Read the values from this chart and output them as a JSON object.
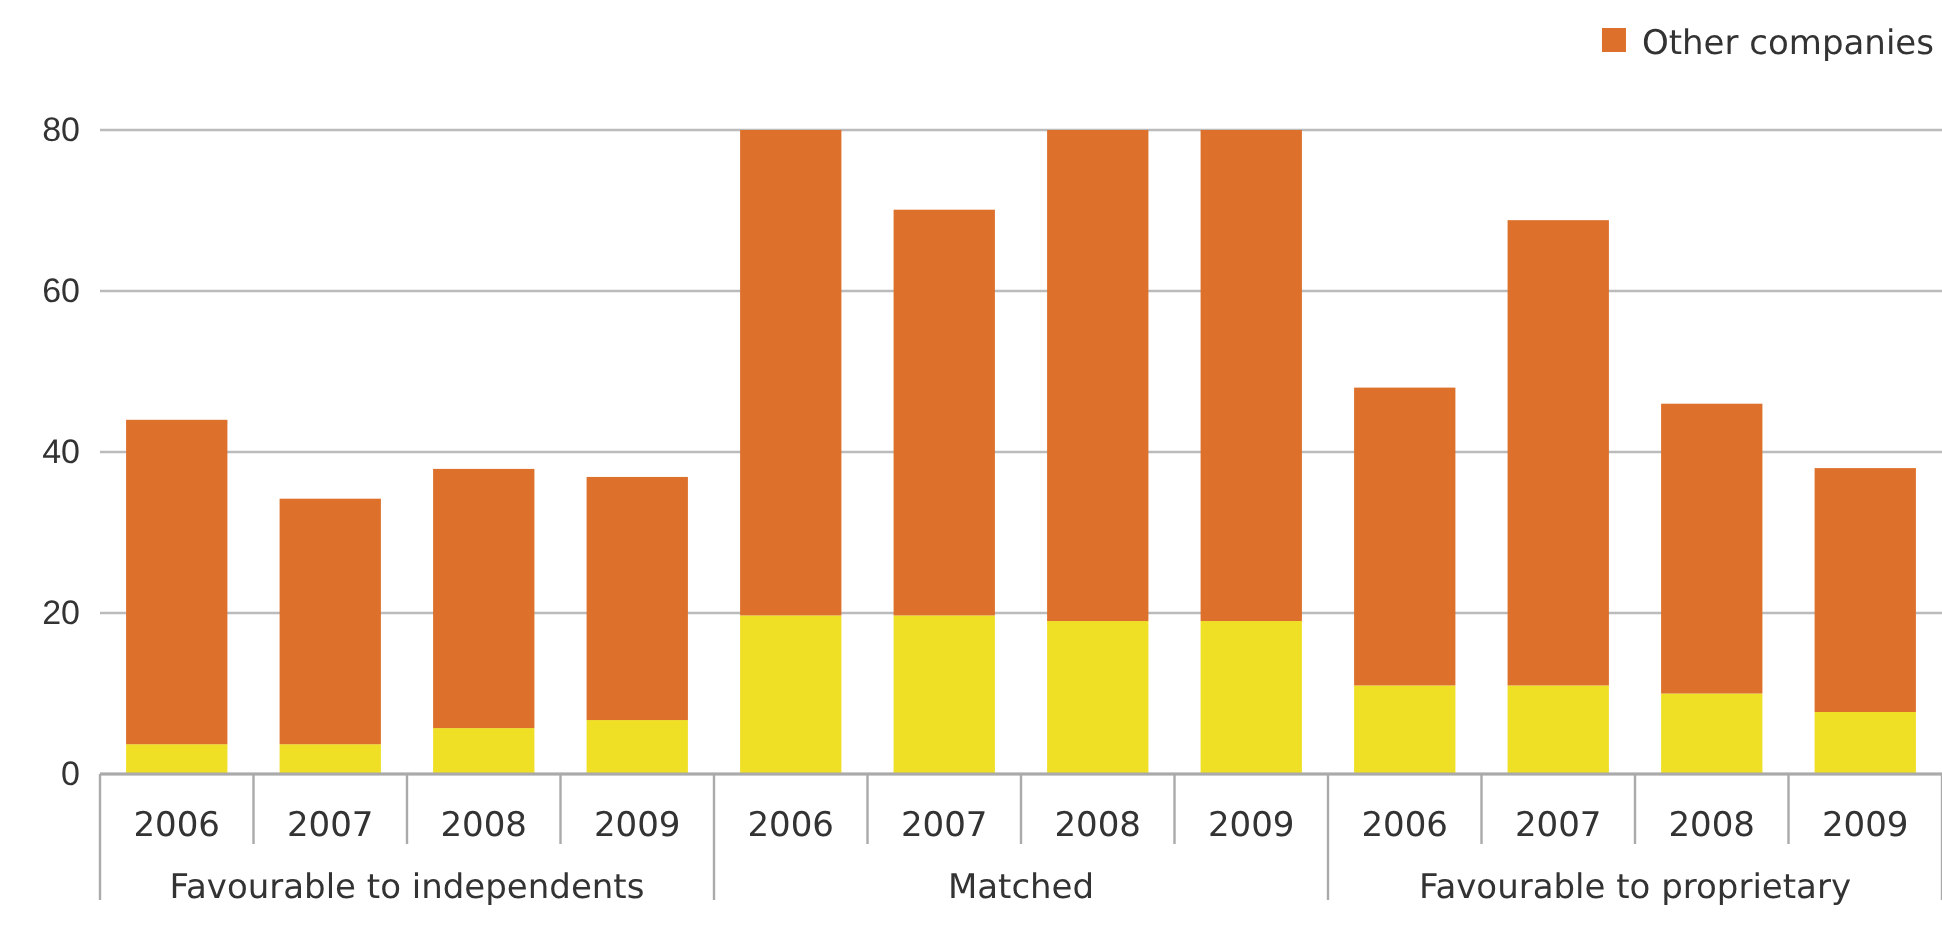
{
  "chart_data": {
    "type": "bar",
    "stacked": true,
    "categories": [
      "2006",
      "2007",
      "2008",
      "2009",
      "2006",
      "2007",
      "2008",
      "2009",
      "2006",
      "2007",
      "2008",
      "2009"
    ],
    "series": [
      {
        "color": "#efe025",
        "values": [
          3.7,
          3.7,
          5.7,
          6.7,
          19.7,
          19.7,
          19,
          19,
          11,
          11,
          10,
          7.7
        ]
      },
      {
        "name": "Other companies",
        "color": "#dd712b",
        "values": [
          40.3,
          30.5,
          32.2,
          30.2,
          60.3,
          50.4,
          61,
          61,
          37,
          57.8,
          36,
          30.3
        ]
      }
    ],
    "ylim": [
      0,
      80
    ],
    "yticks": [
      0,
      20,
      40,
      60,
      80
    ],
    "grid": "y",
    "legend": "top right",
    "annotations": [
      "Favourable to independents",
      "Matched",
      "Favourable to proprietary"
    ]
  }
}
